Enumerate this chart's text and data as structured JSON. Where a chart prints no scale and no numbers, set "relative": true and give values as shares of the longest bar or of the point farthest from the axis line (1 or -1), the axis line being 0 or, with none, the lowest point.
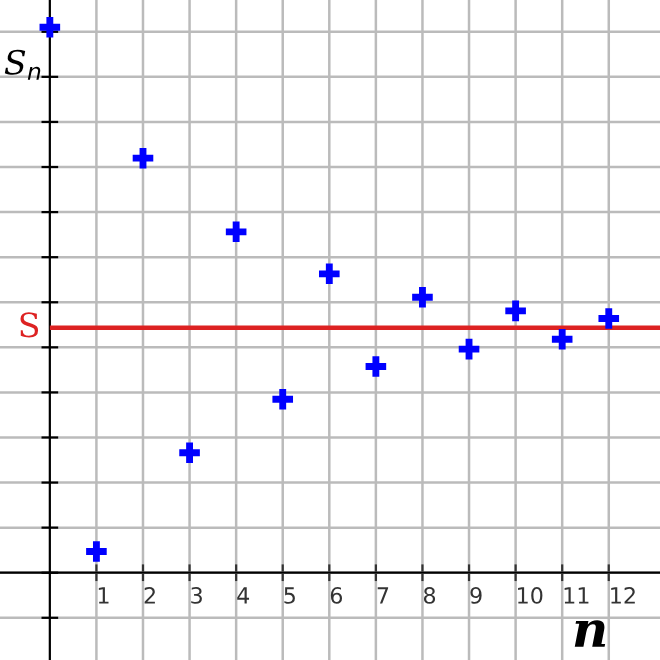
{
  "chart_data": {
    "type": "scatter",
    "relative": true,
    "ylabel": "S$_{n}$",
    "xlabel": "n",
    "x": [
      0,
      1,
      2,
      3,
      4,
      5,
      6,
      7,
      8,
      9,
      10,
      11,
      12
    ],
    "series": [
      {
        "color": "#0000ff",
        "values": [
          1,
          0.039,
          0.76,
          0.22,
          0.625,
          0.318,
          0.548,
          0.378,
          0.505,
          0.41,
          0.48,
          0.428,
          0.466
        ]
      }
    ],
    "xlim": [
      -1.07,
      13.1
    ],
    "xticks": [
      1,
      2,
      3,
      4,
      5,
      6,
      7,
      8,
      9,
      10,
      11,
      12
    ],
    "ref_lines": [
      {
        "axis": "y",
        "value": 0.449,
        "label": "S",
        "color": "#dd2222"
      }
    ],
    "marker": "cross",
    "grid": true,
    "tick_labels": "x"
  }
}
